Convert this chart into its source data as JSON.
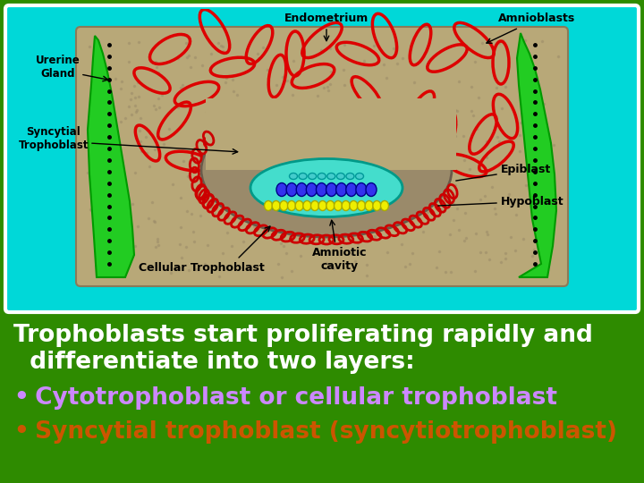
{
  "bg_color": "#2e8b00",
  "slide_bg": "#00d8d8",
  "slide_border_color": "#ffffff",
  "text_line1": "Trophoblasts start proliferating rapidly and",
  "text_line2": "  differentiate into two layers:",
  "bullet1_dot": "•",
  "bullet1_text": " Cytotrophoblast or cellular trophoblast",
  "bullet2_dot": "•",
  "bullet2_text": " Syncytial trophoblast (syncytiotrophoblast)",
  "text_color_main": "#ffffff",
  "text_color_bullet1": "#cc88ff",
  "text_color_bullet2": "#cc5500",
  "font_size_main": 19,
  "font_size_bullets": 19,
  "diagram_labels": {
    "endometrium": "Endometrium",
    "amnioblasts": "Amnioblasts",
    "urerine_gland": "Urerine\nGland",
    "syncytial": "Syncytial\nTrophoblast",
    "cellular": "Cellular Trophoblast",
    "amniotic": "Amniotic\ncavity",
    "epiblast": "Epiblast",
    "hypoblast": "Hypoblast"
  }
}
